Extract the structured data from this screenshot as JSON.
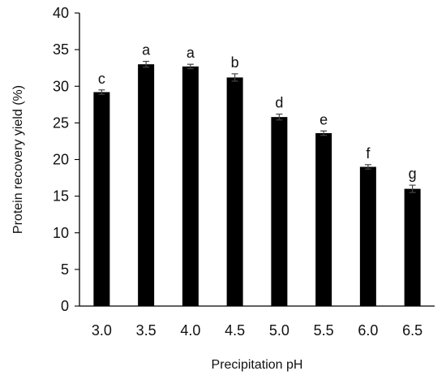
{
  "chart_data": {
    "type": "bar",
    "categories": [
      "3.0",
      "3.5",
      "4.0",
      "4.5",
      "5.0",
      "5.5",
      "6.0",
      "6.5"
    ],
    "values": [
      29.2,
      33.0,
      32.7,
      31.2,
      25.8,
      23.6,
      19.0,
      16.0
    ],
    "errors": [
      0.3,
      0.4,
      0.3,
      0.5,
      0.4,
      0.3,
      0.3,
      0.5
    ],
    "letters": [
      "c",
      "a",
      "a",
      "b",
      "d",
      "e",
      "f",
      "g"
    ],
    "yticks": [
      "0",
      "5",
      "10",
      "15",
      "20",
      "25",
      "30",
      "35",
      "40"
    ],
    "xlabel": "Precipitation pH",
    "ylabel": "Protein recovery yield (%)",
    "ylim": [
      0,
      40
    ],
    "grid": false,
    "legend": "none",
    "colors": {
      "bar": "#000000",
      "axis": "#000000",
      "error": "#444444",
      "text": "#111111",
      "background": "#ffffff"
    }
  }
}
